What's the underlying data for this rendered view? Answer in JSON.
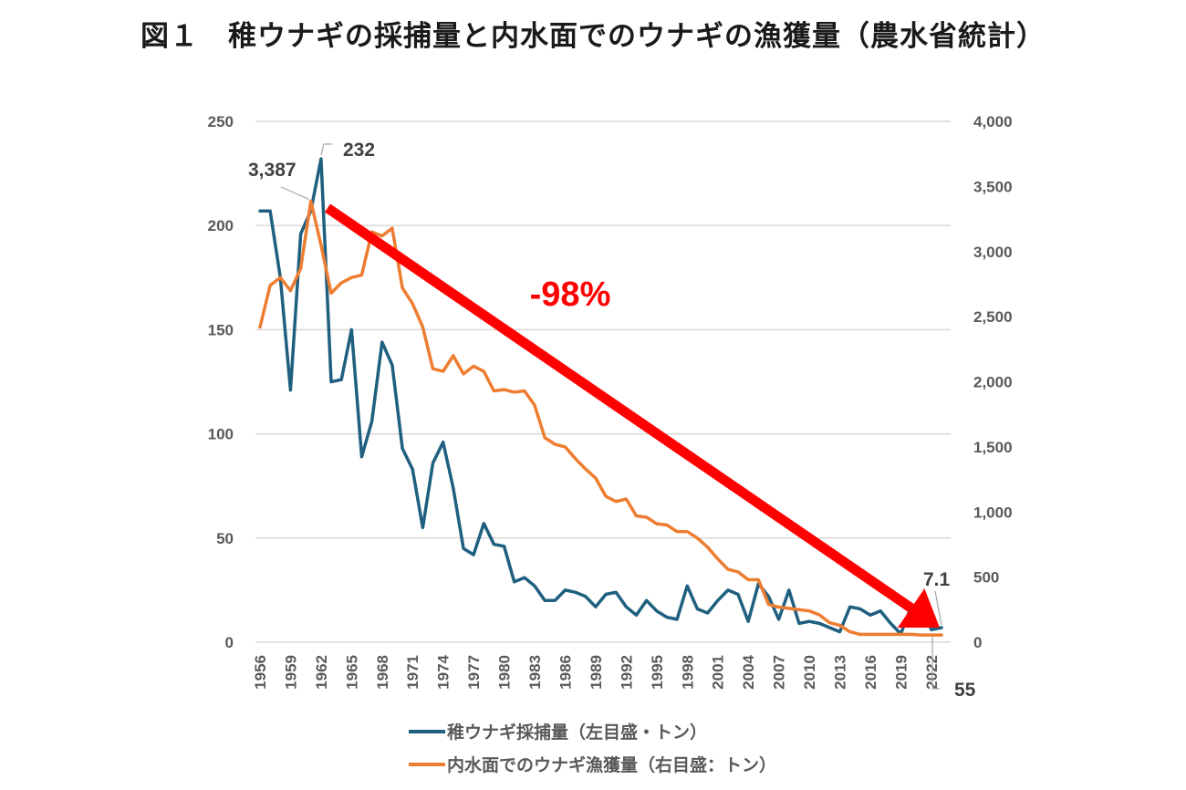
{
  "title": "図１　稚ウナギの採捕量と内水面でのウナギの漁獲量（農水省統計）",
  "chart_data": {
    "type": "line",
    "title": "図１　稚ウナギの採捕量と内水面でのウナギの漁獲量（農水省統計）",
    "xlabel": "",
    "ylabel_left": "",
    "ylabel_right": "",
    "x": [
      1956,
      1957,
      1958,
      1959,
      1960,
      1961,
      1962,
      1963,
      1964,
      1965,
      1966,
      1967,
      1968,
      1969,
      1970,
      1971,
      1972,
      1973,
      1974,
      1975,
      1976,
      1977,
      1978,
      1979,
      1980,
      1981,
      1982,
      1983,
      1984,
      1985,
      1986,
      1987,
      1988,
      1989,
      1990,
      1991,
      1992,
      1993,
      1994,
      1995,
      1996,
      1997,
      1998,
      1999,
      2000,
      2001,
      2002,
      2003,
      2004,
      2005,
      2006,
      2007,
      2008,
      2009,
      2010,
      2011,
      2012,
      2013,
      2014,
      2015,
      2016,
      2017,
      2018,
      2019,
      2020,
      2021,
      2022,
      2023
    ],
    "x_tick_labels": [
      "1956",
      "1959",
      "1962",
      "1965",
      "1968",
      "1971",
      "1974",
      "1977",
      "1980",
      "1983",
      "1986",
      "1989",
      "1992",
      "1995",
      "1998",
      "2001",
      "2004",
      "2007",
      "2010",
      "2013",
      "2016",
      "2019",
      "2022"
    ],
    "ylim_left": [
      0,
      250
    ],
    "ylim_right": [
      0,
      4000
    ],
    "y_ticks_left": [
      "0",
      "50",
      "100",
      "150",
      "200",
      "250"
    ],
    "y_ticks_right": [
      "0",
      "500",
      "1,000",
      "1,500",
      "2,000",
      "2,500",
      "3,000",
      "3,500",
      "4,000"
    ],
    "grid": true,
    "legend_position": "bottom",
    "series": [
      {
        "name": "稚ウナギ採捕量（左目盛・トン）",
        "axis": "left",
        "color": "#1f5f7f",
        "values": [
          207,
          207,
          175,
          121,
          196,
          207,
          232,
          125,
          126,
          150,
          89,
          106,
          144,
          133,
          93,
          83,
          55,
          86,
          96,
          74,
          45,
          42,
          57,
          47,
          46,
          29,
          31,
          27,
          20,
          20,
          25,
          24,
          22,
          17,
          23,
          24,
          17,
          13,
          20,
          15,
          12,
          11,
          27,
          16,
          14,
          20,
          25,
          23,
          10,
          28,
          22,
          11,
          25,
          9,
          10,
          9,
          7,
          5,
          17,
          16,
          13,
          15,
          9,
          4,
          17,
          18,
          6,
          7
        ]
      },
      {
        "name": "内水面でのウナギ漁獲量（右目盛：トン）",
        "axis": "right",
        "color": "#ed7d31",
        "values": [
          2420,
          2740,
          2800,
          2700,
          2870,
          3387,
          3050,
          2680,
          2760,
          2800,
          2820,
          3150,
          3120,
          3180,
          2720,
          2600,
          2420,
          2100,
          2080,
          2200,
          2060,
          2120,
          2080,
          1930,
          1940,
          1920,
          1930,
          1820,
          1570,
          1520,
          1500,
          1410,
          1330,
          1260,
          1120,
          1080,
          1100,
          970,
          960,
          910,
          900,
          850,
          850,
          800,
          730,
          640,
          560,
          540,
          480,
          480,
          290,
          270,
          260,
          250,
          240,
          210,
          150,
          130,
          80,
          60,
          60,
          60,
          60,
          60,
          60,
          55,
          55,
          55
        ]
      }
    ],
    "data_labels": [
      {
        "series": 0,
        "year": 1962,
        "text": "232"
      },
      {
        "series": 1,
        "year": 1961,
        "text": "3,387"
      },
      {
        "series": 0,
        "year": 2023,
        "text": "7.1"
      },
      {
        "series": 1,
        "year": 2023,
        "text": "55"
      }
    ],
    "annotation": {
      "text": "-98%",
      "color": "#ff0000",
      "arrow_from_year": 1963,
      "arrow_to_year": 2022
    }
  }
}
